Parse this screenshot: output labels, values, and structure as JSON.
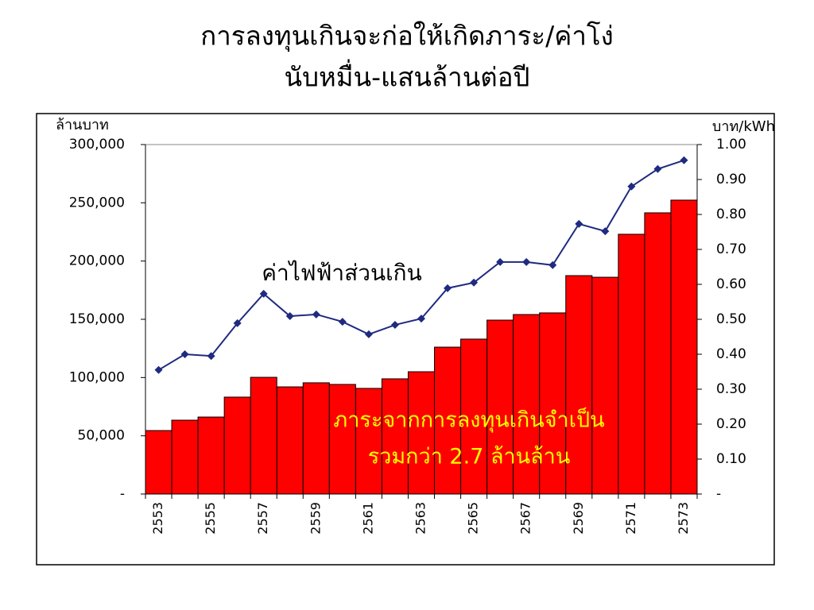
{
  "chart_data": {
    "type": "bar_line",
    "title": [
      "การลงทุนเกินจะก่อให้เกิดภาระ/ค่าโง่",
      "นับหมื่น-แสนล้านต่อปี"
    ],
    "y_label": "ล้านบาท",
    "y2_label": "บาท/kWh",
    "categories": [
      "2553",
      null,
      "2555",
      null,
      "2557",
      null,
      "2559",
      null,
      "2561",
      null,
      "2563",
      null,
      "2565",
      null,
      "2567",
      null,
      "2569",
      null,
      "2571",
      null,
      "2573"
    ],
    "series": [
      {
        "type": "bar",
        "color": "#ff0000",
        "axis": "y",
        "values": [
          54500,
          63400,
          66100,
          83200,
          100200,
          92000,
          95500,
          94100,
          90700,
          98900,
          105000,
          126100,
          133000,
          149300,
          154100,
          155500,
          187500,
          186100,
          223000,
          241400,
          252300
        ]
      },
      {
        "type": "line",
        "color": "#1f2a80",
        "axis": "y2",
        "values": [
          0.355,
          0.4,
          0.395,
          0.489,
          0.573,
          0.509,
          0.514,
          0.493,
          0.457,
          0.484,
          0.502,
          0.589,
          0.605,
          0.664,
          0.664,
          0.655,
          0.773,
          0.752,
          0.88,
          0.93,
          0.955
        ]
      }
    ],
    "annotations": [
      {
        "text": [
          "ค่าไฟฟ้าส่วนเกิน"
        ],
        "color": "#000000"
      },
      {
        "text": [
          "ภาระจากการลงทุนเกินจำเป็น",
          "รวมกว่า 2.7 ล้านล้าน"
        ],
        "color": "#ffff00"
      }
    ],
    "ylim": [
      0,
      300000
    ],
    "yticks": [
      {
        "value": 0,
        "label": "-"
      },
      {
        "value": 50000,
        "label": "50,000"
      },
      {
        "value": 100000,
        "label": "100,000"
      },
      {
        "value": 150000,
        "label": "150,000"
      },
      {
        "value": 200000,
        "label": "200,000"
      },
      {
        "value": 250000,
        "label": "250,000"
      },
      {
        "value": 300000,
        "label": "300,000"
      }
    ],
    "y2lim": [
      0,
      1
    ],
    "y2ticks": [
      {
        "value": 0,
        "label": "-"
      },
      {
        "value": 0.1,
        "label": "0.10"
      },
      {
        "value": 0.2,
        "label": "0.20"
      },
      {
        "value": 0.3,
        "label": "0.30"
      },
      {
        "value": 0.4,
        "label": "0.40"
      },
      {
        "value": 0.5,
        "label": "0.50"
      },
      {
        "value": 0.6,
        "label": "0.60"
      },
      {
        "value": 0.7,
        "label": "0.70"
      },
      {
        "value": 0.8,
        "label": "0.80"
      },
      {
        "value": 0.9,
        "label": "0.90"
      },
      {
        "value": 1,
        "label": "1.00"
      }
    ]
  }
}
